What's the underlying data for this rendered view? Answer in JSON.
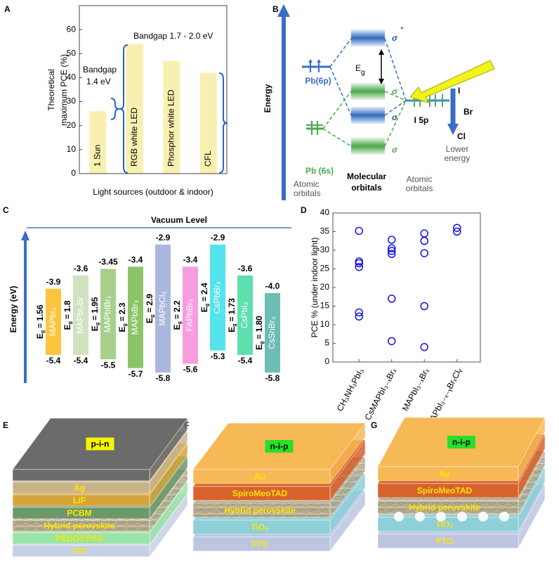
{
  "panel_labels": [
    "A",
    "B",
    "C",
    "D",
    "E",
    "F",
    "G"
  ],
  "chart_data": [
    {
      "type": "bar",
      "ylabel": [
        "Theoretical",
        "maximum PCE (%)"
      ],
      "xlabel": "Light sources (outdoor & indoor)",
      "categories": [
        "1 Sun",
        "RGB white LED",
        "Phosphor white LED",
        "CFL"
      ],
      "values": [
        26,
        54,
        47,
        42
      ],
      "color": "#f8f0b0",
      "ylim": [
        0,
        70
      ],
      "yticks": [
        0,
        10,
        20,
        30,
        40,
        50,
        60
      ],
      "annotations": [
        "Bandgap",
        "1.4 eV",
        "Bandgap 1.7 - 2.0 eV"
      ]
    },
    {
      "type": "floating-bar",
      "title": "Vacuum Level",
      "ylabel": "Energy (eV)",
      "categories": [
        "MAPbI₃",
        "MAPbI₂Br",
        "MAPbIBr₂",
        "MAPbBr₃",
        "MAPbCl₃",
        "FAPbBr₃",
        "CsPbBr₃",
        "CsPbI₃",
        "CsSnBr₃"
      ],
      "tops": [
        -3.9,
        -3.6,
        -3.45,
        -3.4,
        -2.9,
        -3.4,
        -2.9,
        -3.6,
        -4.0
      ],
      "top_labels": [
        "-3.9",
        "-3.6",
        "-3.45",
        "-3.4",
        "-2.9",
        "-3.4",
        "-2.9",
        "-3.6",
        "-4.0"
      ],
      "bottoms": [
        -5.4,
        -5.4,
        -5.5,
        -5.7,
        -5.8,
        -5.6,
        -5.3,
        -5.4,
        -5.8
      ],
      "bandgap_prefix": [
        "E",
        "g",
        "="
      ],
      "bandgaps": [
        "1.56",
        "1.8",
        "1.95",
        "2.3",
        "2.9",
        "2.2",
        "2.4",
        "1.73",
        "1.80"
      ],
      "colors": [
        "#fbc63e",
        "#cfe3bf",
        "#a8d08c",
        "#8cc46a",
        "#aab8df",
        "#f79ddf",
        "#55e3ee",
        "#5fdfb0",
        "#6cbdb3"
      ]
    },
    {
      "type": "scatter",
      "ylabel": "PCE % (under indoor light)",
      "categories": [
        "CH₃NH₃PbI₃",
        "CsMAPbI₃₋ₓBrₓ",
        "MAPbI₃₋ₓBrₓ",
        "MAPbI₃₋ₓ₋ᵧBrₓClᵧ"
      ],
      "values": [
        [
          35.2,
          27,
          26.5,
          25.5,
          13.3,
          12.2
        ],
        [
          32.8,
          30.5,
          29.8,
          29,
          17,
          5.6
        ],
        [
          34.5,
          32.5,
          29.2,
          15,
          4
        ],
        [
          36,
          35
        ]
      ],
      "color": "#1414e6",
      "ylim": [
        0,
        40
      ],
      "yticks": [
        0,
        5,
        10,
        15,
        20,
        25,
        30,
        35,
        40
      ]
    }
  ],
  "energy_diagram": {
    "axis_label": "Energy",
    "pb6p": "Pb(6p)",
    "pb6s": "Pb (6s)",
    "atomic_left": [
      "Atomic",
      "orbitals"
    ],
    "molecular": [
      "Molecular",
      "orbitals"
    ],
    "atomic_right": [
      "Atomic",
      "orbitals"
    ],
    "lower_energy": [
      "Lower",
      "energy"
    ],
    "eg": [
      "E",
      "g"
    ],
    "sigma": "σ",
    "star": "*",
    "halides": [
      "I",
      "Br",
      "Cl"
    ],
    "i5p": "I 5p"
  },
  "devices": [
    {
      "architecture": "p-i-n",
      "layers": [
        "Ag",
        "LiF",
        "PCBM",
        "Hybrid perovskite",
        "PEDOT:PSS",
        "ITO"
      ]
    },
    {
      "architecture": "n-i-p",
      "layers": [
        "Au",
        "SpiroMeoTAD",
        "Hybrid perovskite",
        "TiO₂",
        "FTO"
      ]
    },
    {
      "architecture": "n-i-p",
      "layers": [
        "Au",
        "SpiroMeoTAD",
        "Hybrid perovskite",
        "TiO₂",
        "FTO"
      ]
    }
  ]
}
